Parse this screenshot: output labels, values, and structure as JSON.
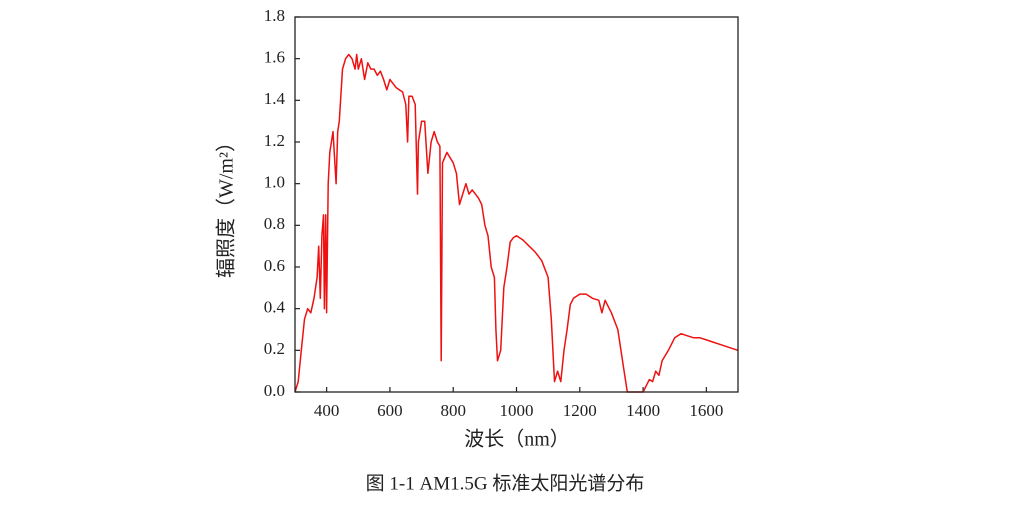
{
  "chart_data": {
    "type": "line",
    "caption": "图 1-1  AM1.5G 标准太阳光谱分布",
    "x_label": "波长（nm）",
    "y_label": "辐照度（W/m²）",
    "xlim": [
      300,
      1700
    ],
    "xticks": [
      400,
      600,
      800,
      1000,
      1200,
      1400,
      1600
    ],
    "ylim": [
      0,
      1.8
    ],
    "yticks": [
      {
        "value": 0,
        "label": "0.0"
      },
      0.2,
      0.4,
      0.6,
      0.8,
      {
        "value": 1,
        "label": "1.0"
      },
      1.2,
      1.4,
      1.6,
      1.8
    ],
    "series": [
      {
        "color": "#ee1111",
        "x": [
          300,
          310,
          320,
          330,
          340,
          350,
          360,
          370,
          375,
          380,
          385,
          390,
          393,
          397,
          400,
          405,
          410,
          420,
          430,
          435,
          440,
          450,
          460,
          470,
          480,
          490,
          495,
          500,
          510,
          520,
          530,
          540,
          550,
          560,
          570,
          580,
          590,
          600,
          610,
          620,
          630,
          640,
          650,
          656,
          660,
          670,
          680,
          687,
          690,
          700,
          710,
          720,
          730,
          740,
          750,
          758,
          762,
          766,
          780,
          800,
          810,
          820,
          830,
          840,
          850,
          860,
          870,
          880,
          890,
          900,
          910,
          920,
          930,
          935,
          940,
          950,
          960,
          970,
          980,
          990,
          1000,
          1020,
          1040,
          1060,
          1080,
          1100,
          1110,
          1120,
          1130,
          1140,
          1150,
          1160,
          1170,
          1180,
          1200,
          1220,
          1240,
          1260,
          1270,
          1280,
          1300,
          1320,
          1340,
          1350,
          1400,
          1410,
          1420,
          1430,
          1440,
          1450,
          1460,
          1480,
          1500,
          1520,
          1540,
          1560,
          1580,
          1600,
          1620,
          1640,
          1660,
          1680,
          1700
        ],
        "values": [
          0,
          0.05,
          0.2,
          0.35,
          0.4,
          0.38,
          0.45,
          0.55,
          0.7,
          0.45,
          0.75,
          0.85,
          0.4,
          0.85,
          0.38,
          1.0,
          1.15,
          1.25,
          1.0,
          1.25,
          1.3,
          1.55,
          1.6,
          1.62,
          1.6,
          1.55,
          1.62,
          1.55,
          1.6,
          1.5,
          1.58,
          1.55,
          1.55,
          1.52,
          1.54,
          1.5,
          1.45,
          1.5,
          1.48,
          1.46,
          1.45,
          1.44,
          1.38,
          1.2,
          1.42,
          1.42,
          1.38,
          0.95,
          1.2,
          1.3,
          1.3,
          1.05,
          1.2,
          1.25,
          1.2,
          1.18,
          0.15,
          1.1,
          1.15,
          1.1,
          1.05,
          0.9,
          0.95,
          1.0,
          0.95,
          0.97,
          0.95,
          0.93,
          0.9,
          0.8,
          0.75,
          0.6,
          0.55,
          0.3,
          0.15,
          0.2,
          0.5,
          0.6,
          0.72,
          0.74,
          0.75,
          0.73,
          0.7,
          0.67,
          0.63,
          0.55,
          0.35,
          0.05,
          0.1,
          0.05,
          0.2,
          0.3,
          0.42,
          0.45,
          0.47,
          0.47,
          0.45,
          0.44,
          0.38,
          0.44,
          0.38,
          0.3,
          0.1,
          0,
          0,
          0.03,
          0.06,
          0.05,
          0.1,
          0.08,
          0.15,
          0.2,
          0.26,
          0.28,
          0.27,
          0.26,
          0.26,
          0.25,
          0.24,
          0.23,
          0.22,
          0.21,
          0.2
        ]
      }
    ]
  }
}
